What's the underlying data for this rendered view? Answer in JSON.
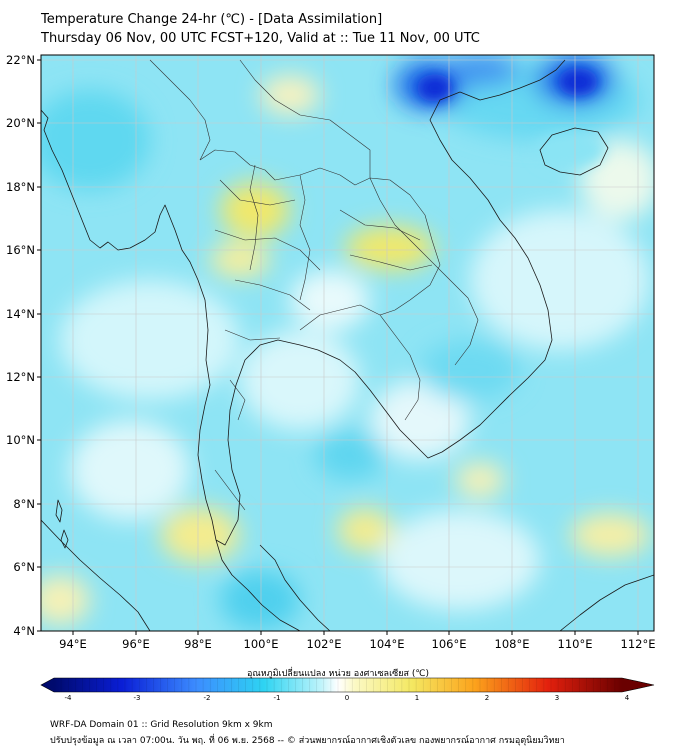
{
  "header": {
    "title": "Temperature Change 24-hr (℃) - [Data Assimilation]",
    "subtitle": "Thursday 06 Nov, 00 UTC FCST+120, Valid at :: Tue 11 Nov, 00 UTC"
  },
  "map": {
    "lat_labels": [
      "22°N",
      "20°N",
      "18°N",
      "16°N",
      "14°N",
      "12°N",
      "10°N",
      "8°N",
      "6°N",
      "4°N"
    ],
    "lon_labels": [
      "94°E",
      "96°E",
      "98°E",
      "100°E",
      "102°E",
      "104°E",
      "106°E",
      "108°E",
      "110°E",
      "112°E"
    ],
    "lat_range": [
      4,
      22.2
    ],
    "lon_range": [
      93,
      112.3
    ]
  },
  "colorbar": {
    "label": "อุณหภูมิเปลี่ยนแปลง หน่วย องศาเซลเซียส (℃)",
    "ticks": [
      "-4",
      "-3",
      "-2",
      "-1",
      "0",
      "1",
      "2",
      "3",
      "4"
    ],
    "range": [
      -4,
      4
    ]
  },
  "footer": {
    "line1": "WRF-DA Domain 01 :: Grid Resolution 9km x 9km",
    "line2": "ปรับปรุงข้อมูล ณ เวลา 07:00น. วัน พฤ. ที่ 06 พ.ย. 2568 -- © ส่วนพยากรณ์อากาศเชิงตัวเลข กองพยากรณ์อากาศ กรมอุตุนิยมวิทยา"
  }
}
